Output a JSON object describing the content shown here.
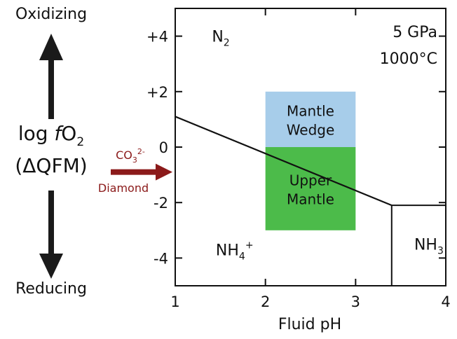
{
  "chart_data": {
    "type": "phase-diagram",
    "conditions": {
      "pressure": "5 GPa",
      "temperature": "1000°C"
    },
    "xlabel": "Fluid pH",
    "xlim": [
      1,
      4
    ],
    "xticks": [
      "1",
      "2",
      "3",
      "4"
    ],
    "ylim": [
      -5,
      5
    ],
    "yticks": [
      "+4",
      "+2",
      "0",
      "-2",
      "-4"
    ],
    "ylabel": {
      "line1_prefix": "log ",
      "f": "f",
      "o": "O",
      "sub": "2",
      "line2": "(ΔQFM)"
    },
    "left_arrow_labels": {
      "top": "Oxidizing",
      "bottom": "Reducing"
    },
    "co3_arrow": {
      "co": "CO",
      "sub": "3",
      "sup": "2-",
      "bottom": "Diamond",
      "color": "#8b1a1a",
      "y": -0.9
    },
    "boundaries": [
      {
        "points": [
          [
            1,
            1.1
          ],
          [
            3.4,
            -2.1
          ]
        ]
      },
      {
        "points": [
          [
            3.4,
            -2.1
          ],
          [
            4,
            -2.1
          ]
        ]
      },
      {
        "points": [
          [
            3.4,
            -2.1
          ],
          [
            3.4,
            -5
          ]
        ]
      }
    ],
    "fields": [
      {
        "label": "N",
        "sub": "2",
        "x": 1.5,
        "y": 4
      },
      {
        "label": "NH",
        "sub": "4",
        "sup": "+",
        "x": 1.45,
        "y": -3.7
      },
      {
        "label": "NH",
        "sub": "3",
        "x": 3.65,
        "y": -3.5
      }
    ],
    "regions": [
      {
        "name": "Mantle Wedge",
        "lines": [
          "Mantle",
          "Wedge"
        ],
        "x": [
          2,
          3
        ],
        "y": [
          0,
          2
        ],
        "color": "#a7cdea"
      },
      {
        "name": "Upper Mantle",
        "lines": [
          "Upper",
          "Mantle"
        ],
        "x": [
          2,
          3
        ],
        "y": [
          -3,
          0
        ],
        "color": "#4cbb4a"
      }
    ]
  }
}
